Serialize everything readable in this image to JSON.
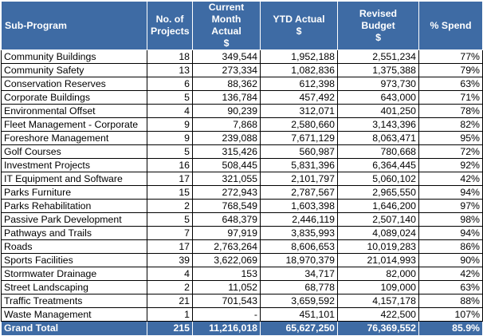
{
  "headers": {
    "sub_program": "Sub-Program",
    "projects_line1": "No. of",
    "projects_line2": "Projects",
    "current_line1": "Current",
    "current_line2": "Month Actual",
    "current_unit": "$",
    "ytd_line1": "YTD Actual",
    "ytd_unit": "$",
    "budget_line1": "Revised",
    "budget_line2": "Budget",
    "budget_unit": "$",
    "spend": "% Spend"
  },
  "rows": [
    {
      "name": "Community Buildings",
      "projects": "18",
      "current": "349,544",
      "ytd": "1,952,188",
      "budget": "2,551,234",
      "spend": "77%"
    },
    {
      "name": "Community Safety",
      "projects": "13",
      "current": "273,334",
      "ytd": "1,082,836",
      "budget": "1,375,388",
      "spend": "79%"
    },
    {
      "name": "Conservation Reserves",
      "projects": "6",
      "current": "88,362",
      "ytd": "612,398",
      "budget": "973,730",
      "spend": "63%"
    },
    {
      "name": "Corporate Buildings",
      "projects": "5",
      "current": "136,784",
      "ytd": "457,492",
      "budget": "643,000",
      "spend": "71%"
    },
    {
      "name": "Environmental Offset",
      "projects": "4",
      "current": "90,239",
      "ytd": "312,071",
      "budget": "401,250",
      "spend": "78%"
    },
    {
      "name": "Fleet Management - Corporate",
      "projects": "9",
      "current": "7,868",
      "ytd": "2,580,660",
      "budget": "3,143,396",
      "spend": "82%"
    },
    {
      "name": "Foreshore Management",
      "projects": "9",
      "current": "239,088",
      "ytd": "7,671,129",
      "budget": "8,063,471",
      "spend": "95%"
    },
    {
      "name": "Golf Courses",
      "projects": "5",
      "current": "315,426",
      "ytd": "560,987",
      "budget": "780,668",
      "spend": "72%"
    },
    {
      "name": "Investment Projects",
      "projects": "16",
      "current": "508,445",
      "ytd": "5,831,396",
      "budget": "6,364,445",
      "spend": "92%"
    },
    {
      "name": "IT Equipment and Software",
      "projects": "17",
      "current": "321,055",
      "ytd": "2,101,797",
      "budget": "5,060,102",
      "spend": "42%"
    },
    {
      "name": "Parks Furniture",
      "projects": "15",
      "current": "272,943",
      "ytd": "2,787,567",
      "budget": "2,965,550",
      "spend": "94%"
    },
    {
      "name": "Parks Rehabilitation",
      "projects": "2",
      "current": "768,549",
      "ytd": "1,603,398",
      "budget": "1,646,200",
      "spend": "97%"
    },
    {
      "name": "Passive Park Development",
      "projects": "5",
      "current": "648,379",
      "ytd": "2,446,119",
      "budget": "2,507,140",
      "spend": "98%"
    },
    {
      "name": "Pathways and Trails",
      "projects": "7",
      "current": "97,919",
      "ytd": "3,835,993",
      "budget": "4,089,024",
      "spend": "94%"
    },
    {
      "name": "Roads",
      "projects": "17",
      "current": "2,763,264",
      "ytd": "8,606,653",
      "budget": "10,019,283",
      "spend": "86%"
    },
    {
      "name": "Sports Facilities",
      "projects": "39",
      "current": "3,622,069",
      "ytd": "18,970,379",
      "budget": "21,014,993",
      "spend": "90%"
    },
    {
      "name": "Stormwater Drainage",
      "projects": "4",
      "current": "153",
      "ytd": "34,717",
      "budget": "82,000",
      "spend": "42%"
    },
    {
      "name": "Street Landscaping",
      "projects": "2",
      "current": "11,052",
      "ytd": "68,778",
      "budget": "109,000",
      "spend": "63%"
    },
    {
      "name": "Traffic Treatments",
      "projects": "21",
      "current": "701,543",
      "ytd": "3,659,592",
      "budget": "4,157,178",
      "spend": "88%"
    },
    {
      "name": "Waste Management",
      "projects": "1",
      "current": "-",
      "ytd": "451,101",
      "budget": "422,500",
      "spend": "107%"
    }
  ],
  "total": {
    "label": "Grand Total",
    "projects": "215",
    "current": "11,216,018",
    "ytd": "65,627,250",
    "budget": "76,369,552",
    "spend": "85.9%"
  },
  "colors": {
    "header_bg": "#3e6ba4",
    "header_text": "#ffffff",
    "grid": "#000000"
  }
}
